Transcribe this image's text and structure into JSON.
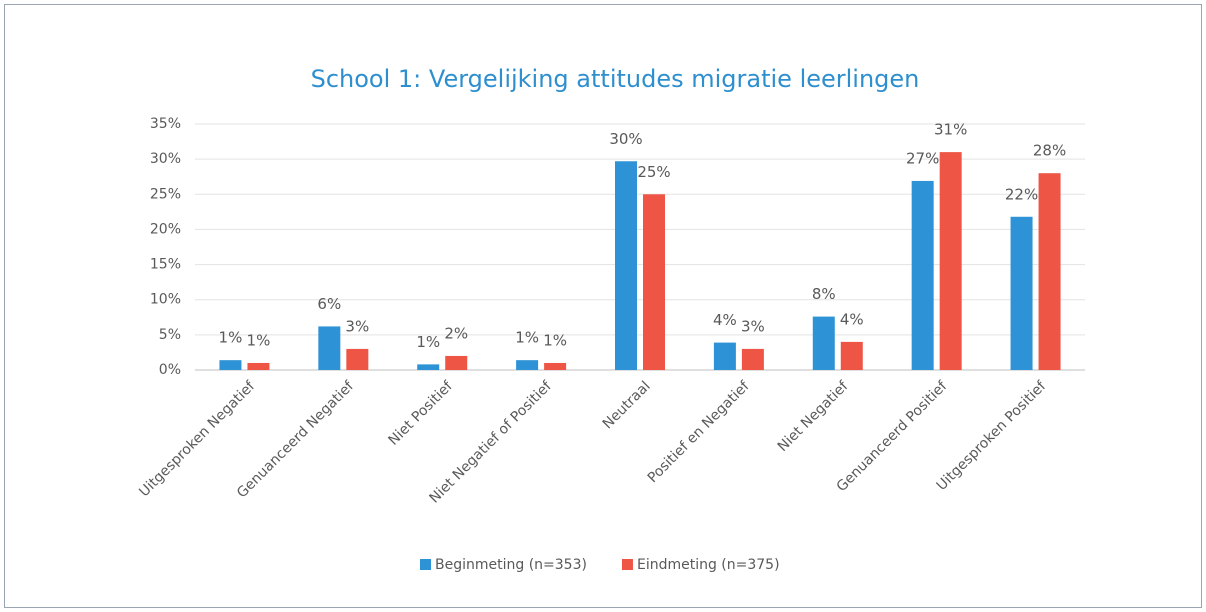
{
  "chart_data": {
    "type": "bar",
    "title": "School 1: Vergelijking attitudes migratie leerlingen",
    "categories": [
      "Uitgesproken Negatief",
      "Genuanceerd Negatief",
      "Niet Positief",
      "Niet Negatief of Positief",
      "Neutraal",
      "Positief en Negatief",
      "Niet Negatief",
      "Genuanceerd Positief",
      "Uitgesproken Positief"
    ],
    "series": [
      {
        "name": "Beginmeting (n=353)",
        "color": "#2e93d6",
        "values": [
          1.4,
          6.2,
          0.8,
          1.4,
          29.7,
          3.9,
          7.6,
          26.9,
          21.8
        ],
        "value_labels": [
          "1%",
          "6%",
          "1%",
          "1%",
          "30%",
          "4%",
          "8%",
          "27%",
          "22%"
        ]
      },
      {
        "name": "Eindmeting (n=375)",
        "color": "#ef5545",
        "values": [
          1,
          3,
          2,
          1,
          25,
          3,
          4,
          31,
          28
        ],
        "value_labels": [
          "1%",
          "3%",
          "2%",
          "1%",
          "25%",
          "3%",
          "4%",
          "31%",
          "28%"
        ]
      }
    ],
    "ylim": [
      0,
      35
    ],
    "yticks": [
      {
        "value": 0,
        "label": "0%"
      },
      {
        "value": 5,
        "label": "5%"
      },
      {
        "value": 10,
        "label": "10%"
      },
      {
        "value": 15,
        "label": "15%"
      },
      {
        "value": 20,
        "label": "20%"
      },
      {
        "value": 25,
        "label": "25%"
      },
      {
        "value": 30,
        "label": "30%"
      },
      {
        "value": 35,
        "label": "35%"
      }
    ],
    "grid": true,
    "legend": "bottom"
  }
}
